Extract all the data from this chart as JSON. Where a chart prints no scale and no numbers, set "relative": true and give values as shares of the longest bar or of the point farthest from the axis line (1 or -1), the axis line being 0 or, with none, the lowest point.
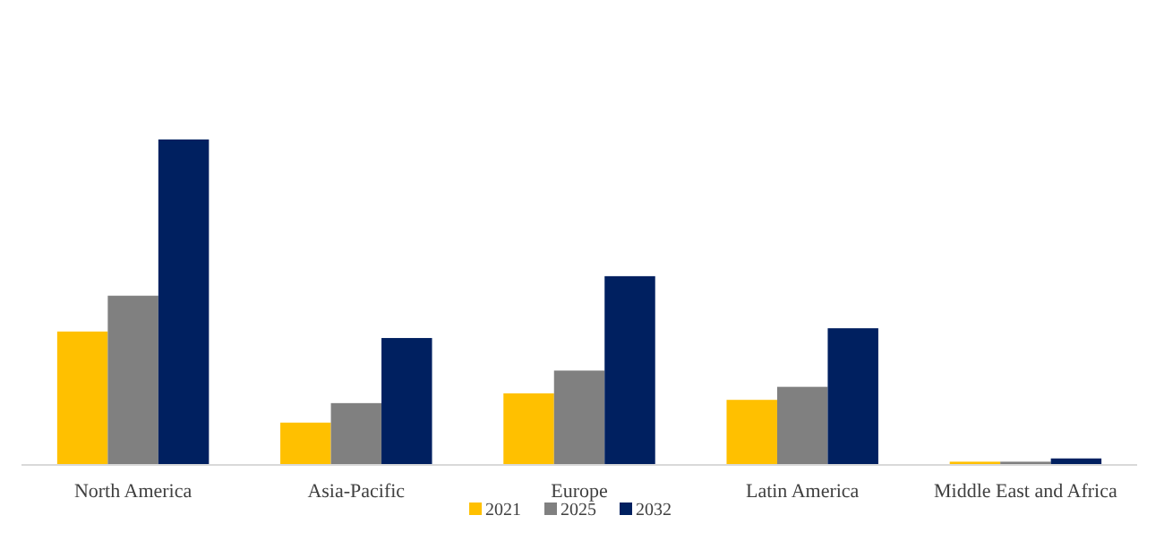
{
  "chart_data": {
    "type": "bar",
    "relative": true,
    "categories": [
      "North America",
      "Asia-Pacific",
      "Europe",
      "Latin America",
      "Middle East and Africa"
    ],
    "series": [
      {
        "name": "2021",
        "color": "#ffc000",
        "values": [
          0.41,
          0.13,
          0.22,
          0.2,
          0.01
        ]
      },
      {
        "name": "2025",
        "color": "#808080",
        "values": [
          0.52,
          0.19,
          0.29,
          0.24,
          0.01
        ]
      },
      {
        "name": "2032",
        "color": "#002060",
        "values": [
          1,
          0.39,
          0.58,
          0.42,
          0.02
        ]
      }
    ],
    "legend": "bottom"
  }
}
